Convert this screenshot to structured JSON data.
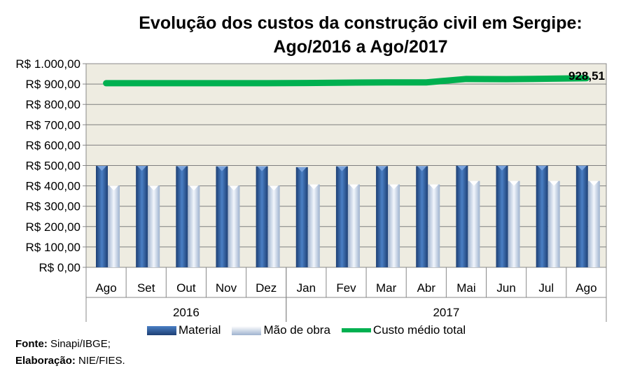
{
  "chart_data": {
    "type": "bar",
    "title": "Evolução dos custos da construção civil em Sergipe:",
    "subtitle": "Ago/2016 a Ago/2017",
    "categories": [
      "Ago",
      "Set",
      "Out",
      "Nov",
      "Dez",
      "Jan",
      "Fev",
      "Mar",
      "Abr",
      "Mai",
      "Jun",
      "Jul",
      "Ago"
    ],
    "groups": [
      {
        "label": "2016",
        "count": 5
      },
      {
        "label": "2017",
        "count": 8
      }
    ],
    "yticks": [
      "R$ 0,00",
      "R$ 100,00",
      "R$ 200,00",
      "R$ 300,00",
      "R$ 400,00",
      "R$ 500,00",
      "R$ 600,00",
      "R$ 700,00",
      "R$ 800,00",
      "R$ 900,00",
      "R$ 1.000,00"
    ],
    "ylim": [
      0,
      1000
    ],
    "grid": true,
    "series": [
      {
        "name": "Material",
        "type": "bar",
        "color": "#2e5fa3",
        "values": [
          498,
          498,
          497,
          496,
          496,
          492,
          496,
          497,
          497,
          499,
          499,
          499,
          499
        ]
      },
      {
        "name": "Mão de obra",
        "type": "bar",
        "color": "#c6d6ec",
        "values": [
          401,
          401,
          401,
          401,
          401,
          407,
          407,
          407,
          407,
          424,
          424,
          424,
          424
        ]
      },
      {
        "name": "Custo médio total",
        "type": "line",
        "color": "#00b050",
        "values": [
          904,
          904,
          904,
          904,
          904,
          905,
          907,
          908,
          908,
          925,
          924,
          926,
          928.51
        ]
      }
    ],
    "data_label": "928,51",
    "legend_position": "bottom"
  },
  "source": {
    "fonte_label": "Fonte:",
    "fonte": "Sinapi/IBGE;",
    "elab_label": "Elaboração:",
    "elab": "NIE/FIES."
  }
}
